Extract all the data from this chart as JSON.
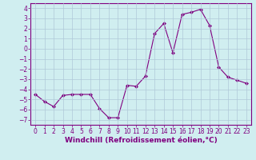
{
  "x": [
    0,
    1,
    2,
    3,
    4,
    5,
    6,
    7,
    8,
    9,
    10,
    11,
    12,
    13,
    14,
    15,
    16,
    17,
    18,
    19,
    20,
    21,
    22,
    23
  ],
  "y": [
    -4.5,
    -5.2,
    -5.7,
    -4.6,
    -4.5,
    -4.5,
    -4.5,
    -5.9,
    -6.8,
    -6.8,
    -3.6,
    -3.7,
    -2.7,
    1.5,
    2.5,
    -0.4,
    3.4,
    3.6,
    3.9,
    2.3,
    -1.8,
    -2.8,
    -3.1,
    -3.4
  ],
  "line_color": "#800080",
  "marker": "D",
  "marker_size": 2,
  "bg_color": "#d0eef0",
  "grid_color": "#b0c8d8",
  "xlabel": "Windchill (Refroidissement éolien,°C)",
  "ylim": [
    -7.5,
    4.5
  ],
  "xlim": [
    -0.5,
    23.5
  ],
  "yticks": [
    -7,
    -6,
    -5,
    -4,
    -3,
    -2,
    -1,
    0,
    1,
    2,
    3,
    4
  ],
  "xticks": [
    0,
    1,
    2,
    3,
    4,
    5,
    6,
    7,
    8,
    9,
    10,
    11,
    12,
    13,
    14,
    15,
    16,
    17,
    18,
    19,
    20,
    21,
    22,
    23
  ],
  "purple": "#800080",
  "tick_fontsize": 5.5,
  "xlabel_fontsize": 6.5
}
